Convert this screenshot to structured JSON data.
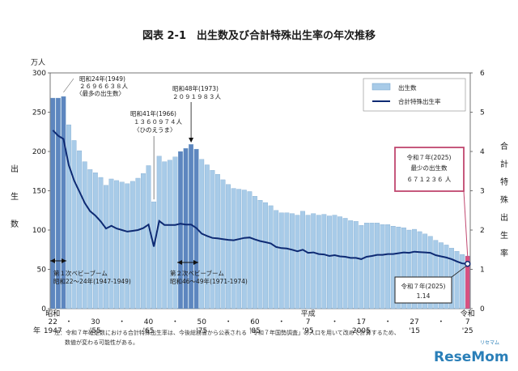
{
  "title": "図表 2-1　出生数及び合計特殊出生率の年次推移",
  "logo": {
    "text": "ReseMom",
    "sub": "リセマム"
  },
  "note_line1": "注：令和７年確定数における合計特殊出生率は、今後総務省から公表される「令和７年国勢調査」の人口を用いて改めて計算するため、",
  "note_line2": "数値が変わる可能性がある。",
  "chart_data": {
    "type": "bar",
    "y_unit_label": "万人",
    "y_axis_label_chars": [
      "出",
      "生",
      "数"
    ],
    "y2_axis_label_chars": [
      "合",
      "計",
      "特",
      "殊",
      "出",
      "生",
      "率"
    ],
    "ylim": [
      0,
      300
    ],
    "y2lim": [
      0,
      6
    ],
    "y_ticks": [
      0,
      50,
      100,
      150,
      200,
      250,
      300
    ],
    "y2_ticks": [
      0,
      1,
      2,
      3,
      4,
      5,
      6
    ],
    "legend": {
      "position": "top-right",
      "bar": "出生数",
      "line": "合計特殊出生率"
    },
    "x_ticks": [
      {
        "year": 1947,
        "top": "昭和",
        "era": "22",
        "west": "1947"
      },
      {
        "year": 1950,
        "top": "",
        "era": "・",
        "west": ""
      },
      {
        "year": 1955,
        "top": "",
        "era": "30",
        "west": "'55"
      },
      {
        "year": 1960,
        "top": "",
        "era": "・",
        "west": ""
      },
      {
        "year": 1965,
        "top": "",
        "era": "40",
        "west": "'65"
      },
      {
        "year": 1970,
        "top": "",
        "era": "・",
        "west": ""
      },
      {
        "year": 1975,
        "top": "",
        "era": "50",
        "west": "'75"
      },
      {
        "year": 1980,
        "top": "",
        "era": "・",
        "west": ""
      },
      {
        "year": 1985,
        "top": "",
        "era": "60",
        "west": "'85"
      },
      {
        "year": 1990,
        "top": "",
        "era": "・",
        "west": ""
      },
      {
        "year": 1995,
        "top": "平成",
        "era": "7",
        "west": "'95"
      },
      {
        "year": 2000,
        "top": "",
        "era": "・",
        "west": ""
      },
      {
        "year": 2005,
        "top": "",
        "era": "17",
        "west": "2005"
      },
      {
        "year": 2010,
        "top": "",
        "era": "・",
        "west": ""
      },
      {
        "year": 2015,
        "top": "",
        "era": "27",
        "west": "'15"
      },
      {
        "year": 2020,
        "top": "",
        "era": "・",
        "west": ""
      },
      {
        "year": 2025,
        "top": "令和",
        "era": "7",
        "west": "'25"
      }
    ],
    "x_year_label": "年",
    "years": [
      1947,
      1948,
      1949,
      1950,
      1951,
      1952,
      1953,
      1954,
      1955,
      1956,
      1957,
      1958,
      1959,
      1960,
      1961,
      1962,
      1963,
      1964,
      1965,
      1966,
      1967,
      1968,
      1969,
      1970,
      1971,
      1972,
      1973,
      1974,
      1975,
      1976,
      1977,
      1978,
      1979,
      1980,
      1981,
      1982,
      1983,
      1984,
      1985,
      1986,
      1987,
      1988,
      1989,
      1990,
      1991,
      1992,
      1993,
      1994,
      1995,
      1996,
      1997,
      1998,
      1999,
      2000,
      2001,
      2002,
      2003,
      2004,
      2005,
      2006,
      2007,
      2008,
      2009,
      2010,
      2011,
      2012,
      2013,
      2014,
      2015,
      2016,
      2017,
      2018,
      2019,
      2020,
      2021,
      2022,
      2023,
      2024,
      2025
    ],
    "births": [
      268,
      268,
      270,
      234,
      214,
      201,
      187,
      177,
      173,
      167,
      157,
      165,
      163,
      161,
      159,
      162,
      166,
      172,
      182,
      136,
      194,
      187,
      189,
      193,
      200,
      204,
      209,
      203,
      190,
      183,
      176,
      171,
      164,
      158,
      153,
      152,
      151,
      149,
      143,
      138,
      135,
      131,
      125,
      122,
      122,
      121,
      119,
      124,
      119,
      121,
      119,
      120,
      118,
      119,
      117,
      115,
      112,
      111,
      106,
      109,
      109,
      109,
      107,
      107,
      105,
      104,
      103,
      100,
      101,
      98,
      95,
      92,
      87,
      84,
      81,
      77,
      73,
      69,
      67
    ],
    "tfr": [
      4.54,
      4.4,
      4.32,
      3.65,
      3.26,
      2.98,
      2.69,
      2.48,
      2.37,
      2.22,
      2.04,
      2.11,
      2.04,
      2.0,
      1.96,
      1.98,
      2.0,
      2.05,
      2.14,
      1.58,
      2.23,
      2.13,
      2.13,
      2.13,
      2.16,
      2.14,
      2.14,
      2.05,
      1.91,
      1.85,
      1.8,
      1.79,
      1.77,
      1.75,
      1.74,
      1.77,
      1.8,
      1.81,
      1.76,
      1.72,
      1.69,
      1.66,
      1.57,
      1.54,
      1.53,
      1.5,
      1.46,
      1.5,
      1.42,
      1.43,
      1.39,
      1.38,
      1.34,
      1.36,
      1.33,
      1.32,
      1.29,
      1.29,
      1.26,
      1.32,
      1.34,
      1.37,
      1.37,
      1.39,
      1.39,
      1.41,
      1.43,
      1.42,
      1.45,
      1.44,
      1.43,
      1.42,
      1.36,
      1.33,
      1.3,
      1.26,
      1.2,
      1.15,
      1.14
    ],
    "baby_boom_1": {
      "from": 1947,
      "to": 1949,
      "label": "第１次ベビーブーム",
      "sub": "昭和22～24年(1947-1949)"
    },
    "baby_boom_2": {
      "from": 1971,
      "to": 1974,
      "label": "第２次ベビーブーム",
      "sub": "昭和46～49年(1971-1974)"
    },
    "annotations": {
      "a1949": {
        "year": 1949,
        "l1": "昭和24年(1949)",
        "l2": "２６９６６３８人",
        "l3": "〈最多の出生数〉"
      },
      "a1966": {
        "year": 1966,
        "l1": "昭和41年(1966)",
        "l2": "１３６０９７４人",
        "l3": "〈ひのえうま〉"
      },
      "a1973": {
        "year": 1973,
        "l1": "昭和48年(1973)",
        "l2": "２０９１９８３人"
      },
      "a2025": {
        "year": 2025,
        "l1": "令和７年(2025)",
        "l2": "最少の出生数",
        "l3": "６７１２３６ 人"
      },
      "tfr2025": {
        "year": 2025,
        "l1": "令和７年(2025)",
        "l2": "1.14"
      }
    },
    "colors": {
      "bar": "#a8cbe8",
      "bar_edge": "#6f9fc9",
      "boom_bar": "#5d86bf",
      "highlight_bar": "#d85080",
      "line": "#0e2a73",
      "callout_border": "#c0476f"
    }
  }
}
